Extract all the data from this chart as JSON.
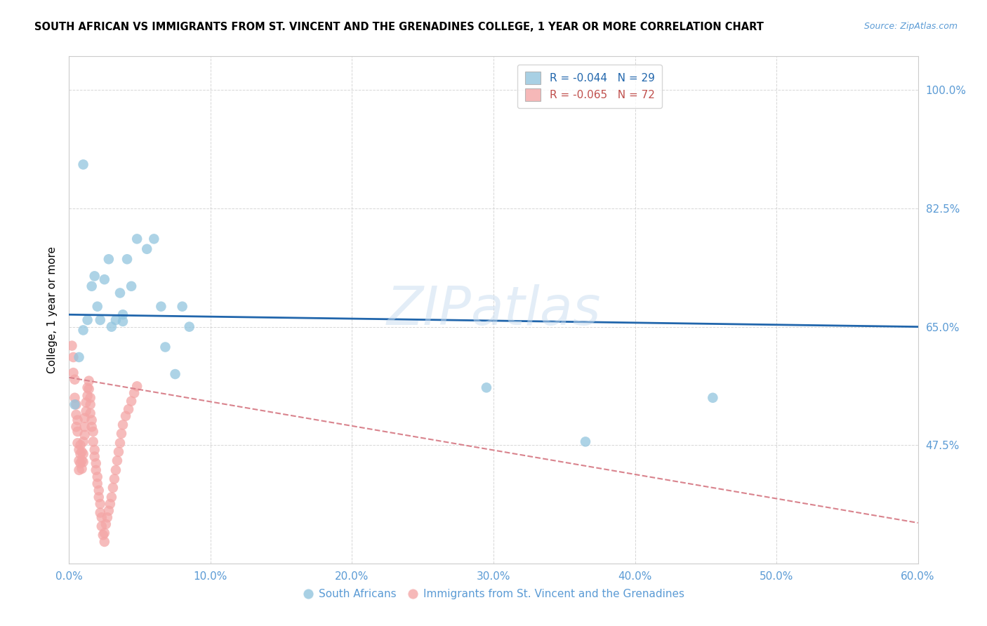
{
  "title": "SOUTH AFRICAN VS IMMIGRANTS FROM ST. VINCENT AND THE GRENADINES COLLEGE, 1 YEAR OR MORE CORRELATION CHART",
  "source": "Source: ZipAtlas.com",
  "ylabel_label": "College, 1 year or more",
  "xlim": [
    0.0,
    0.6
  ],
  "ylim": [
    0.3,
    1.05
  ],
  "ytick_vals": [
    0.475,
    0.65,
    0.825,
    1.0
  ],
  "xtick_vals": [
    0.0,
    0.1,
    0.2,
    0.3,
    0.4,
    0.5,
    0.6
  ],
  "r_blue": -0.044,
  "n_blue": 29,
  "r_pink": -0.065,
  "n_pink": 72,
  "legend_labels": [
    "South Africans",
    "Immigrants from St. Vincent and the Grenadines"
  ],
  "blue_color": "#92c5de",
  "pink_color": "#f4a6a6",
  "trendline_blue_color": "#2166ac",
  "trendline_pink_color": "#d9838d",
  "watermark": "ZIPatlas",
  "blue_x": [
    0.004,
    0.007,
    0.01,
    0.013,
    0.016,
    0.018,
    0.02,
    0.022,
    0.025,
    0.028,
    0.03,
    0.033,
    0.036,
    0.038,
    0.038,
    0.041,
    0.044,
    0.048,
    0.055,
    0.06,
    0.065,
    0.068,
    0.075,
    0.08,
    0.085,
    0.01,
    0.295,
    0.455,
    0.365
  ],
  "blue_y": [
    0.535,
    0.605,
    0.645,
    0.66,
    0.71,
    0.725,
    0.68,
    0.66,
    0.72,
    0.75,
    0.65,
    0.66,
    0.7,
    0.658,
    0.668,
    0.75,
    0.71,
    0.78,
    0.765,
    0.78,
    0.68,
    0.62,
    0.58,
    0.68,
    0.65,
    0.89,
    0.56,
    0.545,
    0.48
  ],
  "pink_x": [
    0.002,
    0.003,
    0.003,
    0.004,
    0.004,
    0.005,
    0.005,
    0.005,
    0.006,
    0.006,
    0.006,
    0.007,
    0.007,
    0.007,
    0.008,
    0.008,
    0.008,
    0.009,
    0.009,
    0.009,
    0.01,
    0.01,
    0.01,
    0.011,
    0.011,
    0.011,
    0.012,
    0.012,
    0.013,
    0.013,
    0.014,
    0.014,
    0.015,
    0.015,
    0.015,
    0.016,
    0.016,
    0.017,
    0.017,
    0.018,
    0.018,
    0.019,
    0.019,
    0.02,
    0.02,
    0.021,
    0.021,
    0.022,
    0.022,
    0.023,
    0.023,
    0.024,
    0.025,
    0.025,
    0.026,
    0.027,
    0.028,
    0.029,
    0.03,
    0.031,
    0.032,
    0.033,
    0.034,
    0.035,
    0.036,
    0.037,
    0.038,
    0.04,
    0.042,
    0.044,
    0.046,
    0.048
  ],
  "pink_y": [
    0.622,
    0.605,
    0.582,
    0.572,
    0.545,
    0.535,
    0.52,
    0.502,
    0.512,
    0.495,
    0.478,
    0.468,
    0.452,
    0.438,
    0.448,
    0.462,
    0.475,
    0.465,
    0.452,
    0.44,
    0.45,
    0.462,
    0.48,
    0.49,
    0.502,
    0.515,
    0.525,
    0.538,
    0.548,
    0.56,
    0.57,
    0.558,
    0.545,
    0.535,
    0.522,
    0.512,
    0.502,
    0.495,
    0.48,
    0.468,
    0.458,
    0.448,
    0.438,
    0.428,
    0.418,
    0.408,
    0.398,
    0.388,
    0.375,
    0.368,
    0.355,
    0.342,
    0.332,
    0.345,
    0.358,
    0.368,
    0.378,
    0.388,
    0.398,
    0.412,
    0.425,
    0.438,
    0.452,
    0.465,
    0.478,
    0.492,
    0.505,
    0.518,
    0.528,
    0.54,
    0.552,
    0.562
  ],
  "blue_trend_x": [
    0.0,
    0.6
  ],
  "blue_trend_y": [
    0.668,
    0.65
  ],
  "pink_trend_x": [
    0.0,
    0.6
  ],
  "pink_trend_y": [
    0.575,
    0.36
  ]
}
